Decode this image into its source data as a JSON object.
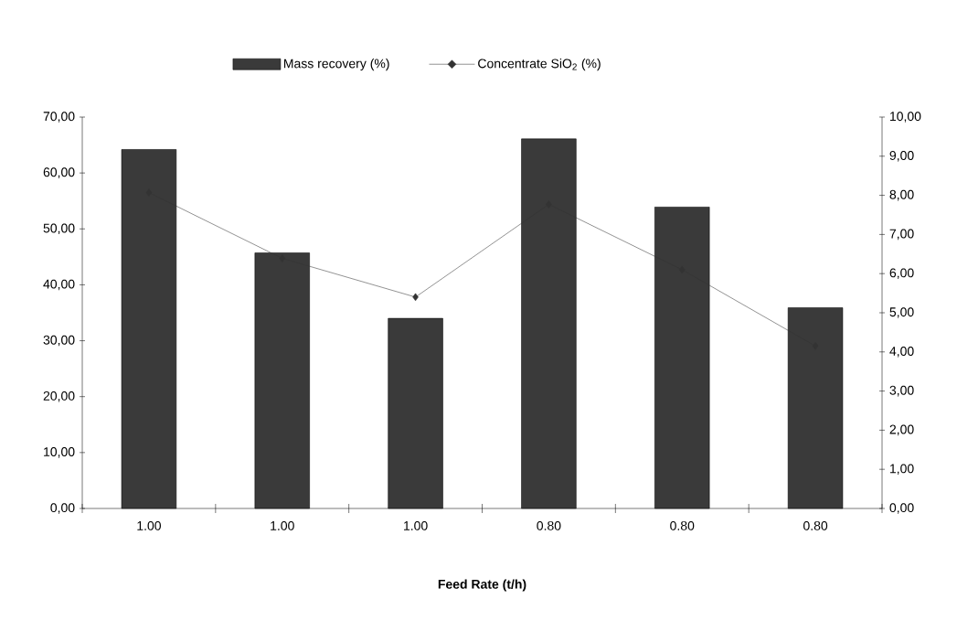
{
  "chart_data": {
    "type": "bar",
    "xlabel": "Feed Rate (t/h)",
    "categories": [
      "1.00",
      "1.00",
      "1.00",
      "0.80",
      "0.80",
      "0.80"
    ],
    "series": [
      {
        "name": "Mass recovery (%)",
        "color": "#3a3a3a",
        "values": [
          64.2,
          45.7,
          34.0,
          66.1,
          53.9,
          35.9
        ]
      },
      {
        "name": "Concentrate SiO$_{2}$ (%)",
        "type": "line",
        "axis": "y2",
        "color": "#333333",
        "marker": "diamond",
        "values": [
          8.07,
          6.39,
          5.4,
          7.77,
          6.1,
          4.15
        ]
      }
    ],
    "ylim": [
      0,
      70
    ],
    "yticks": [
      {
        "value": 0,
        "label": "0,00"
      },
      {
        "value": 10,
        "label": "10,00"
      },
      {
        "value": 20,
        "label": "20,00"
      },
      {
        "value": 30,
        "label": "30,00"
      },
      {
        "value": 40,
        "label": "40,00"
      },
      {
        "value": 50,
        "label": "50,00"
      },
      {
        "value": 60,
        "label": "60,00"
      },
      {
        "value": 70,
        "label": "70,00"
      }
    ],
    "y2lim": [
      0,
      10
    ],
    "y2ticks": [
      {
        "value": 0,
        "label": "0,00"
      },
      {
        "value": 1,
        "label": "1,00"
      },
      {
        "value": 2,
        "label": "2,00"
      },
      {
        "value": 3,
        "label": "3,00"
      },
      {
        "value": 4,
        "label": "4,00"
      },
      {
        "value": 5,
        "label": "5,00"
      },
      {
        "value": 6,
        "label": "6,00"
      },
      {
        "value": 7,
        "label": "7,00"
      },
      {
        "value": 8,
        "label": "8,00"
      },
      {
        "value": 9,
        "label": "9,00"
      },
      {
        "value": 10,
        "label": "10,00"
      }
    ],
    "legend": "top",
    "grid": false
  }
}
